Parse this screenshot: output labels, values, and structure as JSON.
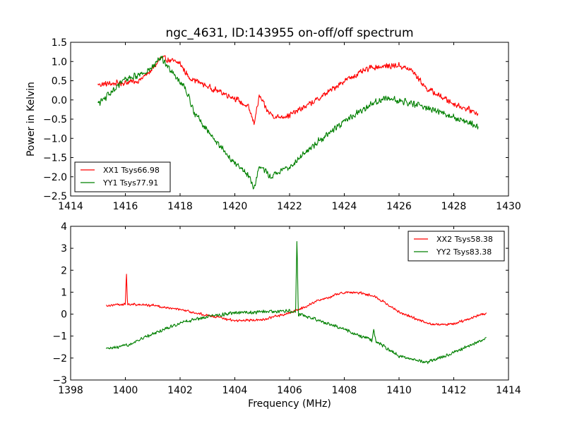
{
  "chart_data": [
    {
      "type": "line",
      "title": "ngc_4631, ID:143955 on-off/off spectrum",
      "xlabel": "",
      "ylabel": "Power in Kelvin",
      "xlim": [
        1414,
        1430
      ],
      "ylim": [
        -2.5,
        1.5
      ],
      "xticks": [
        "1414",
        "1416",
        "1418",
        "1420",
        "1422",
        "1424",
        "1426",
        "1428",
        "1430"
      ],
      "xtick_values": [
        1414,
        1416,
        1418,
        1420,
        1422,
        1424,
        1426,
        1428,
        1430
      ],
      "yticks": [
        "1.5",
        "1.0",
        "0.5",
        "0.0",
        "−0.5",
        "−1.0",
        "−1.5",
        "−2.0",
        "−2.5"
      ],
      "ytick_values": [
        1.5,
        1.0,
        0.5,
        0.0,
        -0.5,
        -1.0,
        -1.5,
        -2.0,
        -2.5
      ],
      "grid": false,
      "legend_position": "lower-left",
      "series": [
        {
          "name": "XX1 Tsys66.98",
          "color": "#ff0000",
          "noise": 0.09,
          "x": [
            1415.0,
            1416.0,
            1416.5,
            1417.0,
            1417.3,
            1418.0,
            1418.3,
            1419.0,
            1420.0,
            1420.5,
            1420.7,
            1420.9,
            1421.2,
            1421.5,
            1422.0,
            1423.0,
            1424.0,
            1425.0,
            1426.0,
            1426.5,
            1427.0,
            1428.0,
            1428.9
          ],
          "y": [
            0.4,
            0.45,
            0.5,
            0.8,
            1.1,
            0.95,
            0.6,
            0.35,
            0.05,
            -0.2,
            -0.6,
            0.1,
            -0.3,
            -0.45,
            -0.4,
            0.0,
            0.5,
            0.85,
            0.9,
            0.75,
            0.3,
            -0.1,
            -0.35
          ]
        },
        {
          "name": "YY1 Tsys77.91",
          "color": "#008000",
          "noise": 0.1,
          "x": [
            1415.0,
            1415.5,
            1416.0,
            1416.5,
            1417.0,
            1417.3,
            1417.7,
            1418.2,
            1418.5,
            1419.0,
            1419.5,
            1420.0,
            1420.5,
            1420.7,
            1420.9,
            1421.3,
            1422.0,
            1423.0,
            1424.0,
            1425.0,
            1425.5,
            1426.0,
            1427.0,
            1428.0,
            1428.9
          ],
          "y": [
            -0.1,
            0.2,
            0.55,
            0.65,
            0.85,
            1.1,
            0.75,
            0.3,
            -0.3,
            -0.8,
            -1.25,
            -1.65,
            -1.95,
            -2.3,
            -1.7,
            -2.0,
            -1.75,
            -1.1,
            -0.55,
            -0.1,
            0.05,
            0.0,
            -0.2,
            -0.45,
            -0.7
          ]
        }
      ]
    },
    {
      "type": "line",
      "title": "",
      "xlabel": "Frequency (MHz)",
      "ylabel": "",
      "xlim": [
        1398,
        1414
      ],
      "ylim": [
        -3,
        4
      ],
      "xticks": [
        "1398",
        "1400",
        "1402",
        "1404",
        "1406",
        "1408",
        "1410",
        "1412",
        "1414"
      ],
      "xtick_values": [
        1398,
        1400,
        1402,
        1404,
        1406,
        1408,
        1410,
        1412,
        1414
      ],
      "yticks": [
        "4",
        "3",
        "2",
        "1",
        "0",
        "−1",
        "−2",
        "−3"
      ],
      "ytick_values": [
        4,
        3,
        2,
        1,
        0,
        -1,
        -2,
        -3
      ],
      "grid": false,
      "legend_position": "upper-right",
      "series": [
        {
          "name": "XX2 Tsys58.38",
          "color": "#ff0000",
          "noise": 0.07,
          "x": [
            1399.3,
            1400.0,
            1400.04,
            1400.08,
            1401.0,
            1402.0,
            1403.0,
            1404.0,
            1405.0,
            1406.0,
            1406.5,
            1407.0,
            1408.0,
            1408.7,
            1409.2,
            1410.0,
            1411.0,
            1411.5,
            1412.0,
            1413.2
          ],
          "y": [
            0.4,
            0.45,
            1.9,
            0.45,
            0.4,
            0.2,
            -0.05,
            -0.3,
            -0.25,
            0.05,
            0.3,
            0.6,
            1.0,
            0.95,
            0.75,
            0.1,
            -0.4,
            -0.5,
            -0.45,
            0.05
          ]
        },
        {
          "name": "YY2 Tsys83.38",
          "color": "#008000",
          "noise": 0.09,
          "x": [
            1399.3,
            1400.0,
            1401.0,
            1402.0,
            1403.0,
            1404.0,
            1405.0,
            1406.0,
            1406.22,
            1406.27,
            1406.32,
            1407.0,
            1408.0,
            1409.0,
            1409.08,
            1409.16,
            1410.0,
            1411.0,
            1412.0,
            1413.2
          ],
          "y": [
            -1.6,
            -1.45,
            -0.9,
            -0.4,
            -0.1,
            0.05,
            0.1,
            0.15,
            0.1,
            3.5,
            0.0,
            -0.25,
            -0.7,
            -1.2,
            -0.7,
            -1.25,
            -1.9,
            -2.2,
            -1.75,
            -1.1
          ]
        }
      ]
    }
  ]
}
